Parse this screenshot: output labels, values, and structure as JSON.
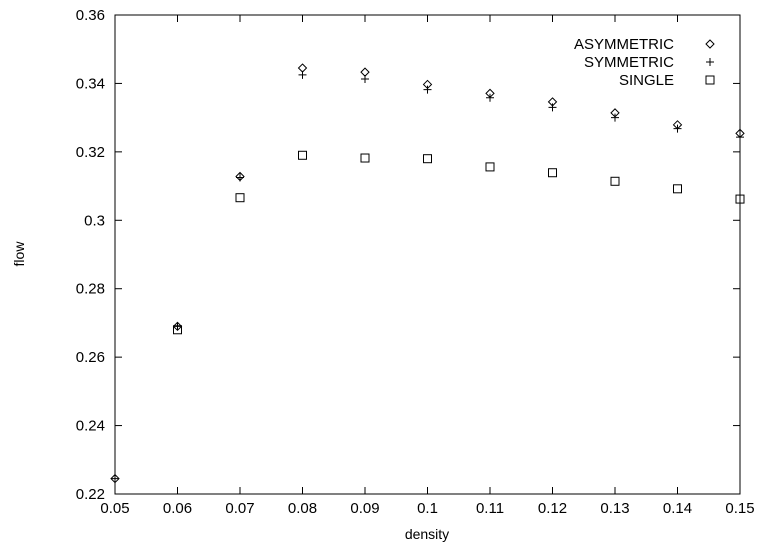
{
  "chart_data": {
    "type": "scatter",
    "title": "",
    "xlabel": "density",
    "ylabel": "flow",
    "xlim": [
      0.05,
      0.15
    ],
    "ylim": [
      0.22,
      0.36
    ],
    "xticks": [
      "0.05",
      "0.06",
      "0.07",
      "0.08",
      "0.09",
      "0.1",
      "0.11",
      "0.12",
      "0.13",
      "0.14",
      "0.15"
    ],
    "yticks": [
      "0.22",
      "0.24",
      "0.26",
      "0.28",
      "0.3",
      "0.32",
      "0.34",
      "0.36"
    ],
    "grid": false,
    "legend_position": "top-right",
    "series": [
      {
        "name": "ASYMMETRIC",
        "marker": "diamond",
        "x": [
          0.05,
          0.06,
          0.07,
          0.08,
          0.09,
          0.1,
          0.11,
          0.12,
          0.13,
          0.14,
          0.15
        ],
        "y": [
          0.2245,
          0.269,
          0.3128,
          0.3445,
          0.3433,
          0.3397,
          0.3371,
          0.3346,
          0.3314,
          0.3279,
          0.3254
        ]
      },
      {
        "name": "SYMMETRIC",
        "marker": "plus",
        "x": [
          0.05,
          0.06,
          0.07,
          0.08,
          0.09,
          0.1,
          0.11,
          0.12,
          0.13,
          0.14,
          0.15
        ],
        "y": [
          0.2245,
          0.269,
          0.3125,
          0.3425,
          0.3413,
          0.3382,
          0.3358,
          0.333,
          0.33,
          0.3268,
          0.3243
        ]
      },
      {
        "name": "SINGLE",
        "marker": "square",
        "x": [
          0.06,
          0.07,
          0.08,
          0.09,
          0.1,
          0.11,
          0.12,
          0.13,
          0.14,
          0.15
        ],
        "y": [
          0.268,
          0.3066,
          0.319,
          0.3182,
          0.318,
          0.3156,
          0.3139,
          0.3114,
          0.3092,
          0.3062
        ]
      }
    ]
  }
}
